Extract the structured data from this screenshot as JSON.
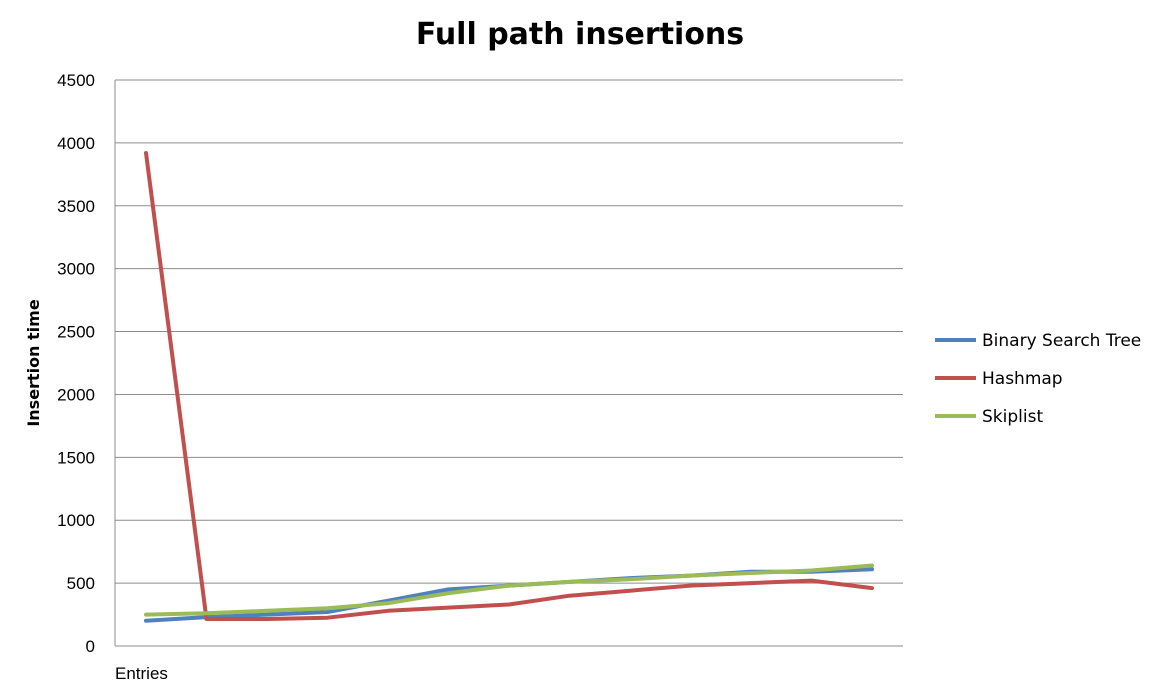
{
  "chart_data": {
    "type": "line",
    "title": "Full path insertions",
    "ylabel": "Insertion time",
    "xlabel": "",
    "categories": [
      "Entries",
      "",
      "",
      "",
      "",
      "",
      "",
      "",
      "",
      "",
      "",
      "",
      ""
    ],
    "ylim": [
      0,
      4500
    ],
    "yticks": [
      0,
      500,
      1000,
      1500,
      2000,
      2500,
      3000,
      3500,
      4000,
      4500
    ],
    "grid": true,
    "legend_position": "right",
    "series": [
      {
        "name": "Binary Search Tree",
        "color": "#4F81BD",
        "values": [
          200,
          230,
          250,
          270,
          360,
          450,
          480,
          510,
          540,
          560,
          590,
          590,
          610
        ]
      },
      {
        "name": "Hashmap",
        "color": "#C0504D",
        "values": [
          3920,
          215,
          215,
          225,
          280,
          305,
          330,
          400,
          440,
          480,
          500,
          520,
          460
        ]
      },
      {
        "name": "Skiplist",
        "color": "#9BBB59",
        "values": [
          250,
          260,
          280,
          300,
          340,
          420,
          480,
          510,
          530,
          560,
          580,
          600,
          640
        ]
      }
    ]
  }
}
